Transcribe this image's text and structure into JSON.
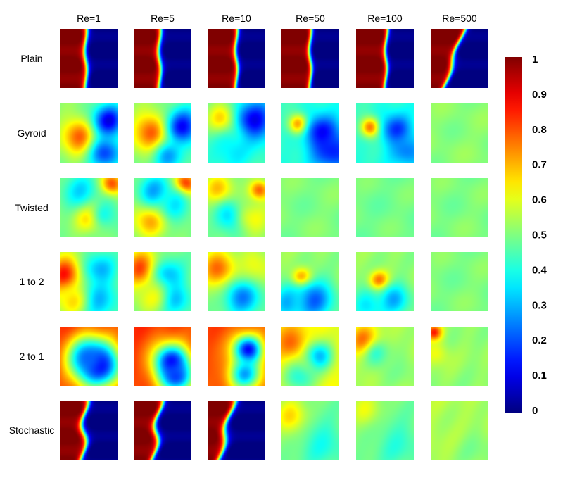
{
  "chart_data": {
    "type": "heatmap",
    "columns": [
      "Re=1",
      "Re=5",
      "Re=10",
      "Re=50",
      "Re=100",
      "Re=500"
    ],
    "rows": [
      "Plain",
      "Gyroid",
      "Twisted",
      "1 to 2",
      "2 to 1",
      "Stochastic"
    ],
    "colorscale": "jet",
    "colorbar": {
      "range": [
        0,
        1
      ],
      "ticks": [
        "1",
        "0.9",
        "0.8",
        "0.7",
        "0.6",
        "0.5",
        "0.4",
        "0.3",
        "0.2",
        "0.1",
        "0"
      ]
    },
    "cell_features": [
      [
        {
          "kind": "front",
          "pos": 0.45,
          "width": 0.12,
          "tilt": 0.0,
          "wave": 0.02
        },
        {
          "kind": "front",
          "pos": 0.45,
          "width": 0.12,
          "tilt": 0.0,
          "wave": 0.02
        },
        {
          "kind": "front",
          "pos": 0.5,
          "width": 0.11,
          "tilt": 0.0,
          "wave": 0.02
        },
        {
          "kind": "front",
          "pos": 0.5,
          "width": 0.1,
          "tilt": 0.0,
          "wave": 0.02
        },
        {
          "kind": "front",
          "pos": 0.52,
          "width": 0.1,
          "tilt": 0.02,
          "wave": 0.02
        },
        {
          "kind": "front",
          "pos": 0.4,
          "width": 0.12,
          "tilt": 0.35,
          "wave": 0.03
        }
      ],
      [
        {
          "kind": "blobs",
          "base": 0.5,
          "blobs": [
            [
              0.35,
              0.55,
              0.22,
              0.8
            ],
            [
              0.85,
              0.3,
              0.2,
              0.1
            ],
            [
              0.8,
              0.85,
              0.2,
              0.2
            ]
          ]
        },
        {
          "kind": "blobs",
          "base": 0.5,
          "blobs": [
            [
              0.35,
              0.5,
              0.24,
              0.85
            ],
            [
              0.85,
              0.4,
              0.22,
              0.12
            ],
            [
              0.6,
              0.9,
              0.2,
              0.3
            ]
          ]
        },
        {
          "kind": "blobs",
          "base": 0.45,
          "blobs": [
            [
              0.3,
              0.3,
              0.2,
              0.8
            ],
            [
              0.8,
              0.3,
              0.25,
              0.1
            ],
            [
              0.4,
              0.75,
              0.25,
              0.35
            ]
          ]
        },
        {
          "kind": "blobs",
          "base": 0.42,
          "blobs": [
            [
              0.3,
              0.35,
              0.12,
              0.8
            ],
            [
              0.7,
              0.5,
              0.2,
              0.1
            ],
            [
              0.9,
              0.8,
              0.25,
              0.15
            ]
          ]
        },
        {
          "kind": "blobs",
          "base": 0.42,
          "blobs": [
            [
              0.25,
              0.4,
              0.12,
              0.8
            ],
            [
              0.7,
              0.45,
              0.18,
              0.15
            ],
            [
              0.9,
              0.8,
              0.2,
              0.25
            ]
          ]
        },
        {
          "kind": "flat",
          "value": 0.51
        }
      ],
      [
        {
          "kind": "blobs",
          "base": 0.5,
          "blobs": [
            [
              0.9,
              0.1,
              0.14,
              0.85
            ],
            [
              0.55,
              0.65,
              0.18,
              0.75
            ],
            [
              0.35,
              0.2,
              0.22,
              0.35
            ],
            [
              0.8,
              0.6,
              0.2,
              0.4
            ]
          ]
        },
        {
          "kind": "blobs",
          "base": 0.5,
          "blobs": [
            [
              0.9,
              0.1,
              0.14,
              0.9
            ],
            [
              0.3,
              0.7,
              0.22,
              0.72
            ],
            [
              0.35,
              0.2,
              0.2,
              0.3
            ],
            [
              0.7,
              0.45,
              0.2,
              0.35
            ]
          ]
        },
        {
          "kind": "blobs",
          "base": 0.5,
          "blobs": [
            [
              0.2,
              0.2,
              0.18,
              0.7
            ],
            [
              0.4,
              0.65,
              0.18,
              0.3
            ],
            [
              0.9,
              0.2,
              0.12,
              0.8
            ],
            [
              0.8,
              0.7,
              0.2,
              0.62
            ]
          ]
        },
        {
          "kind": "flat",
          "value": 0.5
        },
        {
          "kind": "flat",
          "value": 0.49
        },
        {
          "kind": "flat",
          "value": 0.5
        }
      ],
      [
        {
          "kind": "blobs",
          "base": 0.5,
          "blobs": [
            [
              0.1,
              0.4,
              0.22,
              0.9
            ],
            [
              0.7,
              0.3,
              0.2,
              0.3
            ],
            [
              0.65,
              0.8,
              0.25,
              0.3
            ],
            [
              0.2,
              0.85,
              0.2,
              0.65
            ]
          ]
        },
        {
          "kind": "blobs",
          "base": 0.5,
          "blobs": [
            [
              0.15,
              0.3,
              0.22,
              0.85
            ],
            [
              0.6,
              0.4,
              0.2,
              0.3
            ],
            [
              0.7,
              0.8,
              0.2,
              0.3
            ],
            [
              0.3,
              0.8,
              0.2,
              0.6
            ]
          ]
        },
        {
          "kind": "blobs",
          "base": 0.5,
          "blobs": [
            [
              0.2,
              0.3,
              0.22,
              0.8
            ],
            [
              0.6,
              0.75,
              0.22,
              0.25
            ],
            [
              0.85,
              0.2,
              0.2,
              0.62
            ]
          ]
        },
        {
          "kind": "blobs",
          "base": 0.52,
          "blobs": [
            [
              0.35,
              0.45,
              0.12,
              0.88
            ],
            [
              0.55,
              0.8,
              0.25,
              0.22
            ],
            [
              0.1,
              0.85,
              0.2,
              0.3
            ]
          ]
        },
        {
          "kind": "blobs",
          "base": 0.52,
          "blobs": [
            [
              0.4,
              0.5,
              0.12,
              0.85
            ],
            [
              0.65,
              0.8,
              0.2,
              0.3
            ],
            [
              0.2,
              0.9,
              0.2,
              0.35
            ]
          ]
        },
        {
          "kind": "flat",
          "value": 0.5
        }
      ],
      [
        {
          "kind": "blobs",
          "base": 0.82,
          "blobs": [
            [
              0.7,
              0.65,
              0.25,
              0.1
            ],
            [
              0.5,
              0.55,
              0.25,
              0.2
            ]
          ]
        },
        {
          "kind": "blobs",
          "base": 0.82,
          "blobs": [
            [
              0.65,
              0.6,
              0.22,
              0.1
            ],
            [
              0.75,
              0.85,
              0.2,
              0.2
            ]
          ]
        },
        {
          "kind": "blobs",
          "base": 0.8,
          "blobs": [
            [
              0.7,
              0.4,
              0.18,
              0.1
            ],
            [
              0.65,
              0.8,
              0.2,
              0.3
            ]
          ]
        },
        {
          "kind": "blobs",
          "base": 0.62,
          "blobs": [
            [
              0.2,
              0.3,
              0.2,
              0.8
            ],
            [
              0.65,
              0.5,
              0.18,
              0.3
            ],
            [
              0.3,
              0.85,
              0.2,
              0.4
            ]
          ]
        },
        {
          "kind": "blobs",
          "base": 0.55,
          "blobs": [
            [
              0.15,
              0.25,
              0.18,
              0.8
            ],
            [
              0.4,
              0.5,
              0.18,
              0.4
            ],
            [
              0.8,
              0.7,
              0.25,
              0.5
            ]
          ]
        },
        {
          "kind": "blobs",
          "base": 0.52,
          "blobs": [
            [
              0.05,
              0.1,
              0.1,
              0.85
            ],
            [
              0.1,
              0.45,
              0.15,
              0.62
            ]
          ]
        }
      ],
      [
        {
          "kind": "front",
          "pos": 0.42,
          "width": 0.14,
          "tilt": 0.05,
          "wave": 0.05
        },
        {
          "kind": "front",
          "pos": 0.4,
          "width": 0.14,
          "tilt": 0.12,
          "wave": 0.05
        },
        {
          "kind": "front",
          "pos": 0.32,
          "width": 0.15,
          "tilt": 0.25,
          "wave": 0.04
        },
        {
          "kind": "blobs",
          "base": 0.5,
          "blobs": [
            [
              0.2,
              0.3,
              0.2,
              0.7
            ],
            [
              0.7,
              0.7,
              0.3,
              0.4
            ]
          ]
        },
        {
          "kind": "blobs",
          "base": 0.5,
          "blobs": [
            [
              0.2,
              0.2,
              0.2,
              0.62
            ],
            [
              0.7,
              0.7,
              0.3,
              0.42
            ]
          ]
        },
        {
          "kind": "blobs",
          "base": 0.55,
          "blobs": [
            [
              0.8,
              0.8,
              0.3,
              0.5
            ]
          ]
        }
      ]
    ]
  }
}
